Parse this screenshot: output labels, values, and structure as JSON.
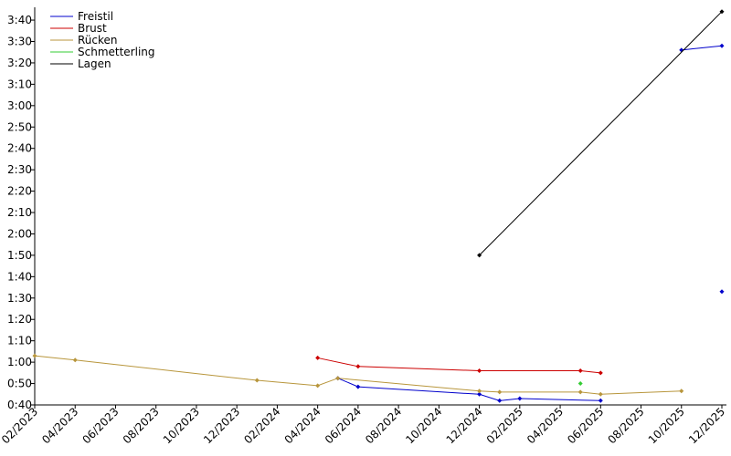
{
  "chart_data": {
    "type": "line",
    "xlim": [
      "2023-02",
      "2025-12"
    ],
    "xticks": [
      {
        "value": "2023-02",
        "label": "02/2023"
      },
      {
        "value": "2023-04",
        "label": "04/2023"
      },
      {
        "value": "2023-06",
        "label": "06/2023"
      },
      {
        "value": "2023-08",
        "label": "08/2023"
      },
      {
        "value": "2023-10",
        "label": "10/2023"
      },
      {
        "value": "2023-12",
        "label": "12/2023"
      },
      {
        "value": "2024-02",
        "label": "02/2024"
      },
      {
        "value": "2024-04",
        "label": "04/2024"
      },
      {
        "value": "2024-06",
        "label": "06/2024"
      },
      {
        "value": "2024-08",
        "label": "08/2024"
      },
      {
        "value": "2024-10",
        "label": "10/2024"
      },
      {
        "value": "2024-12",
        "label": "12/2024"
      },
      {
        "value": "2025-02",
        "label": "02/2025"
      },
      {
        "value": "2025-04",
        "label": "04/2025"
      },
      {
        "value": "2025-06",
        "label": "06/2025"
      },
      {
        "value": "2025-08",
        "label": "08/2025"
      },
      {
        "value": "2025-10",
        "label": "10/2025"
      },
      {
        "value": "2025-12",
        "label": "12/2025"
      }
    ],
    "ylim": [
      40,
      226
    ],
    "yticks": [
      {
        "value": 40,
        "label": "0:40"
      },
      {
        "value": 50,
        "label": "0:50"
      },
      {
        "value": 60,
        "label": "1:00"
      },
      {
        "value": 70,
        "label": "1:10"
      },
      {
        "value": 80,
        "label": "1:20"
      },
      {
        "value": 90,
        "label": "1:30"
      },
      {
        "value": 100,
        "label": "1:40"
      },
      {
        "value": 110,
        "label": "1:50"
      },
      {
        "value": 120,
        "label": "2:00"
      },
      {
        "value": 130,
        "label": "2:10"
      },
      {
        "value": 140,
        "label": "2:20"
      },
      {
        "value": 150,
        "label": "2:30"
      },
      {
        "value": 160,
        "label": "2:40"
      },
      {
        "value": 170,
        "label": "2:50"
      },
      {
        "value": 180,
        "label": "3:00"
      },
      {
        "value": 190,
        "label": "3:10"
      },
      {
        "value": 200,
        "label": "3:20"
      },
      {
        "value": 210,
        "label": "3:30"
      },
      {
        "value": 220,
        "label": "3:40"
      }
    ],
    "legend": "upper-left",
    "series": [
      {
        "name": "Freistil",
        "color": "#0000cc",
        "x": [
          "2024-05",
          "2024-06",
          "2024-12",
          "2025-01",
          "2025-02",
          "2025-06",
          null,
          "2025-10",
          "2025-12",
          null,
          "2025-12"
        ],
        "values": [
          52.5,
          48.5,
          45,
          42,
          43,
          42,
          null,
          206,
          208,
          null,
          93
        ]
      },
      {
        "name": "Brust",
        "color": "#cc0000",
        "x": [
          "2024-04",
          "2024-06",
          "2024-12",
          "2025-05",
          "2025-06"
        ],
        "values": [
          62,
          58,
          56,
          56,
          55
        ]
      },
      {
        "name": "Rücken",
        "color": "#b8963c",
        "x": [
          "2023-02",
          "2023-04",
          "2024-01",
          "2024-04",
          "2024-05",
          "2024-12",
          "2025-01",
          "2025-05",
          "2025-06",
          "2025-10"
        ],
        "values": [
          63,
          61,
          51.5,
          49,
          52.5,
          46.5,
          46,
          46,
          45,
          46.5
        ]
      },
      {
        "name": "Schmetterling",
        "color": "#33cc33",
        "x": [
          "2025-05"
        ],
        "values": [
          50
        ]
      },
      {
        "name": "Lagen",
        "color": "#000000",
        "x": [
          "2024-12",
          "2025-12"
        ],
        "values": [
          110,
          224
        ]
      }
    ]
  }
}
